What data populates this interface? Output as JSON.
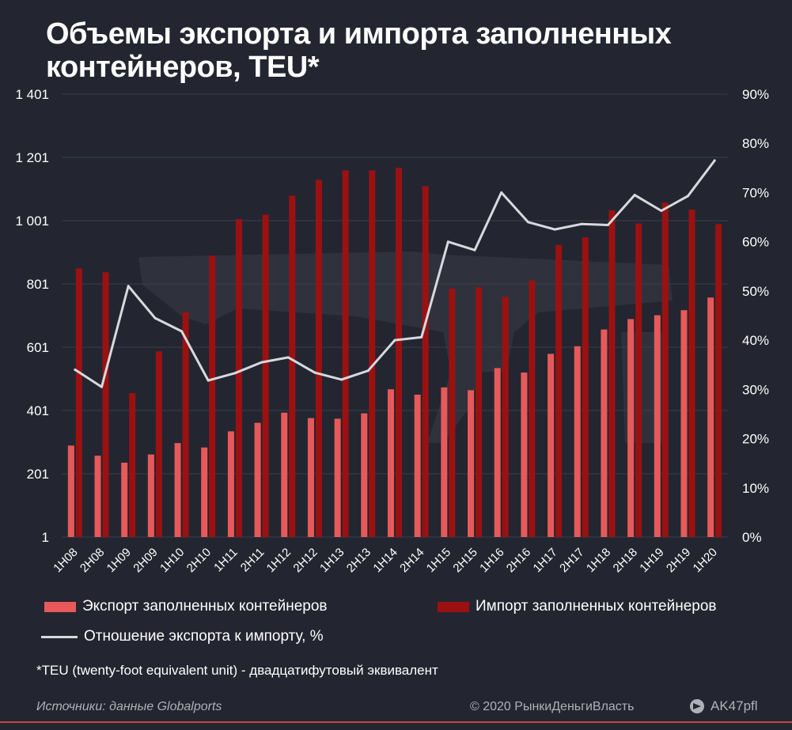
{
  "title": "Объемы экспорта и импорта заполненных контейнеров, TEU*",
  "legend": {
    "export": "Экспорт заполненных  контейнеров",
    "import": "Импорт заполненных  контейнеров",
    "ratio": "Отношение экспорта к импорту, %"
  },
  "footnote": "*TEU  (twenty-foot equivalent  unit)  - двадцатифутовый эквивалент",
  "footer": {
    "source": "Источники: данные Globalports",
    "copyright": "© 2020  РынкиДеньгиВласть",
    "brand": "AK47pfl"
  },
  "colors": {
    "background": "#232630",
    "export": "#e8595a",
    "import": "#9b1112",
    "ratio_line": "#d7d9de",
    "text": "#ffffff"
  },
  "chart_data": {
    "type": "bar",
    "categories": [
      "1H08",
      "2H08",
      "1H09",
      "2H09",
      "1H10",
      "2H10",
      "1H11",
      "2H11",
      "1H12",
      "2H12",
      "1H13",
      "2H13",
      "1H14",
      "2H14",
      "1H15",
      "2H15",
      "1H16",
      "2H16",
      "1H17",
      "2H17",
      "1H18",
      "2H18",
      "1H19",
      "2H19",
      "1H20"
    ],
    "y_left_ticks": [
      "1 401",
      "1 201",
      "1 001",
      "801",
      "601",
      "401",
      "201",
      "1"
    ],
    "y_right_ticks": [
      "90%",
      "80%",
      "70%",
      "60%",
      "50%",
      "40%",
      "30%",
      "20%",
      "10%",
      "0%"
    ],
    "ylim_left": [
      1,
      1401
    ],
    "ylim_right": [
      0,
      90
    ],
    "series": [
      {
        "name": "Экспорт заполненных  контейнеров",
        "axis": "left",
        "type": "bar",
        "values": [
          290,
          258,
          236,
          262,
          298,
          284,
          335,
          362,
          394,
          377,
          375,
          392,
          468,
          451,
          474,
          465,
          535,
          521,
          580,
          604,
          657,
          690,
          702,
          718,
          758
        ]
      },
      {
        "name": "Импорт заполненных  контейнеров",
        "axis": "left",
        "type": "bar",
        "values": [
          850,
          838,
          456,
          588,
          712,
          890,
          1006,
          1020,
          1080,
          1130,
          1160,
          1160,
          1168,
          1110,
          786,
          790,
          760,
          812,
          924,
          948,
          1034,
          992,
          1058,
          1036,
          990
        ]
      },
      {
        "name": "Отношение экспорта к импорту, %",
        "axis": "right",
        "type": "line",
        "values": [
          34,
          30.5,
          51,
          44.5,
          41.8,
          31.8,
          33.3,
          35.5,
          36.5,
          33.4,
          32,
          33.8,
          40,
          40.6,
          60,
          58.3,
          70,
          64,
          62.5,
          63.6,
          63.4,
          69.5,
          66.3,
          69.3,
          76.5
        ]
      }
    ]
  }
}
